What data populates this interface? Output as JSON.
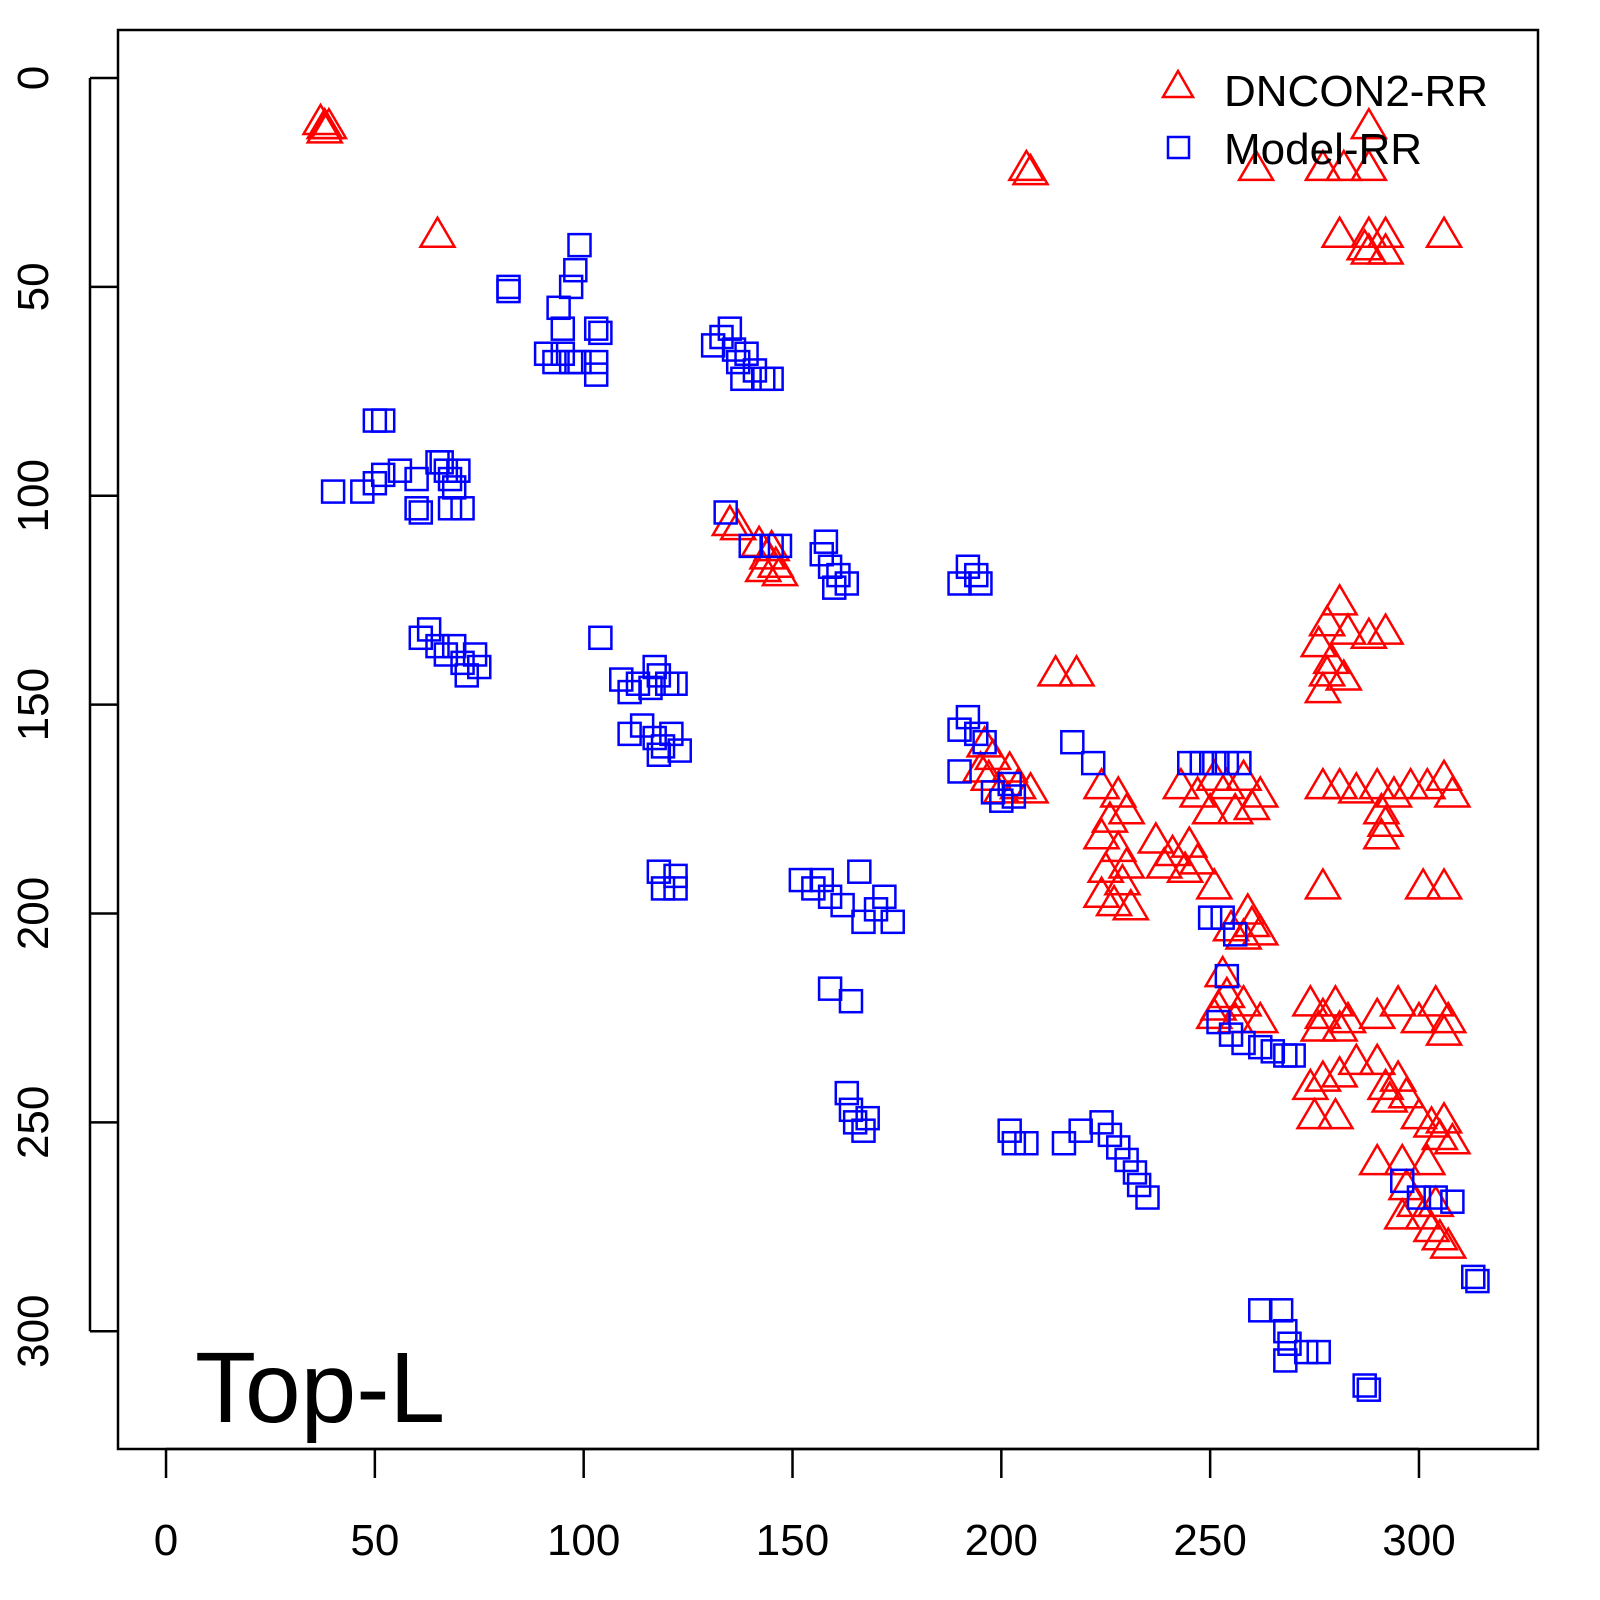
{
  "chart_data": {
    "type": "scatter",
    "title": "",
    "xlabel": "",
    "ylabel": "",
    "xlim": [
      -11.5,
      328.5
    ],
    "ylim": [
      -11.5,
      328.2
    ],
    "y_reversed": true,
    "grid": false,
    "x_ticks": [
      "0",
      "50",
      "100",
      "150",
      "200",
      "250",
      "300"
    ],
    "y_ticks": [
      "0",
      "50",
      "100",
      "150",
      "200",
      "250",
      "300"
    ],
    "annotation": "Top-L",
    "legend": {
      "position": "top-right",
      "entries": [
        "DNCON2-RR",
        "Model-RR"
      ]
    },
    "colors": {
      "DNCON2-RR": "#ff0000",
      "Model-RR": "#0000ff"
    },
    "series": [
      {
        "name": "DNCON2-RR",
        "marker": "triangle",
        "points": [
          [
            37,
            11
          ],
          [
            38,
            12
          ],
          [
            39,
            12
          ],
          [
            38,
            13
          ],
          [
            65,
            38
          ],
          [
            206,
            22
          ],
          [
            207,
            23
          ],
          [
            261,
            22
          ],
          [
            288,
            12
          ],
          [
            277,
            22
          ],
          [
            282,
            22
          ],
          [
            288,
            22
          ],
          [
            281,
            38
          ],
          [
            288,
            38
          ],
          [
            292,
            38
          ],
          [
            306,
            38
          ],
          [
            288,
            42
          ],
          [
            292,
            42
          ],
          [
            287,
            41
          ],
          [
            135,
            107
          ],
          [
            137,
            108
          ],
          [
            142,
            112
          ],
          [
            144,
            115
          ],
          [
            146,
            117
          ],
          [
            143,
            118
          ],
          [
            147,
            119
          ],
          [
            145,
            113
          ],
          [
            213,
            143
          ],
          [
            218,
            143
          ],
          [
            281,
            126
          ],
          [
            278,
            131
          ],
          [
            283,
            133
          ],
          [
            276,
            136
          ],
          [
            288,
            134
          ],
          [
            292,
            133
          ],
          [
            279,
            140
          ],
          [
            282,
            144
          ],
          [
            277,
            147
          ],
          [
            278,
            143
          ],
          [
            196,
            160
          ],
          [
            198,
            163
          ],
          [
            197,
            168
          ],
          [
            200,
            171
          ],
          [
            204,
            170
          ],
          [
            207,
            171
          ],
          [
            195,
            166
          ],
          [
            202,
            166
          ],
          [
            224,
            170
          ],
          [
            228,
            172
          ],
          [
            226,
            178
          ],
          [
            230,
            176
          ],
          [
            224,
            182
          ],
          [
            228,
            185
          ],
          [
            225,
            190
          ],
          [
            229,
            193
          ],
          [
            224,
            196
          ],
          [
            227,
            198
          ],
          [
            231,
            199
          ],
          [
            230,
            189
          ],
          [
            237,
            183
          ],
          [
            241,
            186
          ],
          [
            245,
            184
          ],
          [
            247,
            188
          ],
          [
            239,
            189
          ],
          [
            244,
            190
          ],
          [
            243,
            170
          ],
          [
            247,
            172
          ],
          [
            251,
            168
          ],
          [
            254,
            170
          ],
          [
            258,
            168
          ],
          [
            262,
            172
          ],
          [
            250,
            176
          ],
          [
            256,
            176
          ],
          [
            260,
            175
          ],
          [
            277,
            170
          ],
          [
            281,
            170
          ],
          [
            285,
            171
          ],
          [
            290,
            170
          ],
          [
            294,
            172
          ],
          [
            298,
            170
          ],
          [
            302,
            170
          ],
          [
            306,
            168
          ],
          [
            308,
            172
          ],
          [
            291,
            176
          ],
          [
            291,
            182
          ],
          [
            292,
            179
          ],
          [
            251,
            194
          ],
          [
            277,
            194
          ],
          [
            301,
            194
          ],
          [
            306,
            194
          ],
          [
            259,
            200
          ],
          [
            255,
            204
          ],
          [
            258,
            206
          ],
          [
            262,
            205
          ],
          [
            260,
            203
          ],
          [
            253,
            215
          ],
          [
            254,
            220
          ],
          [
            252,
            223
          ],
          [
            256,
            226
          ],
          [
            258,
            222
          ],
          [
            262,
            226
          ],
          [
            251,
            225
          ],
          [
            274,
            222
          ],
          [
            277,
            225
          ],
          [
            280,
            222
          ],
          [
            283,
            226
          ],
          [
            276,
            228
          ],
          [
            281,
            228
          ],
          [
            290,
            225
          ],
          [
            295,
            222
          ],
          [
            300,
            226
          ],
          [
            304,
            222
          ],
          [
            307,
            226
          ],
          [
            306,
            229
          ],
          [
            274,
            242
          ],
          [
            277,
            240
          ],
          [
            281,
            239
          ],
          [
            275,
            249
          ],
          [
            280,
            249
          ],
          [
            290,
            236
          ],
          [
            292,
            242
          ],
          [
            295,
            240
          ],
          [
            297,
            244
          ],
          [
            293,
            245
          ],
          [
            285,
            236
          ],
          [
            300,
            249
          ],
          [
            303,
            251
          ],
          [
            306,
            250
          ],
          [
            305,
            254
          ],
          [
            308,
            255
          ],
          [
            290,
            260
          ],
          [
            296,
            260
          ],
          [
            302,
            260
          ],
          [
            297,
            266
          ],
          [
            299,
            270
          ],
          [
            301,
            273
          ],
          [
            303,
            276
          ],
          [
            305,
            278
          ],
          [
            307,
            280
          ],
          [
            296,
            273
          ],
          [
            304,
            270
          ]
        ]
      },
      {
        "name": "Model-RR",
        "marker": "square",
        "points": [
          [
            40,
            99
          ],
          [
            47,
            99
          ],
          [
            50,
            97
          ],
          [
            52,
            95
          ],
          [
            56,
            94
          ],
          [
            60,
            96
          ],
          [
            50,
            82
          ],
          [
            52,
            82
          ],
          [
            60,
            103
          ],
          [
            61,
            104
          ],
          [
            65,
            92
          ],
          [
            67,
            94
          ],
          [
            68,
            96
          ],
          [
            69,
            98
          ],
          [
            66,
            92
          ],
          [
            70,
            94
          ],
          [
            71,
            103
          ],
          [
            68,
            103
          ],
          [
            82,
            50
          ],
          [
            82,
            51
          ],
          [
            91,
            66
          ],
          [
            93,
            68
          ],
          [
            95,
            66
          ],
          [
            97,
            68
          ],
          [
            99,
            68
          ],
          [
            99,
            40
          ],
          [
            98,
            46
          ],
          [
            97,
            50
          ],
          [
            94,
            55
          ],
          [
            95,
            60
          ],
          [
            103,
            60
          ],
          [
            104,
            61
          ],
          [
            103,
            68
          ],
          [
            103,
            71
          ],
          [
            131,
            64
          ],
          [
            133,
            62
          ],
          [
            135,
            60
          ],
          [
            136,
            65
          ],
          [
            137,
            68
          ],
          [
            138,
            72
          ],
          [
            141,
            70
          ],
          [
            143,
            72
          ],
          [
            145,
            72
          ],
          [
            139,
            66
          ],
          [
            61,
            134
          ],
          [
            63,
            132
          ],
          [
            65,
            136
          ],
          [
            67,
            138
          ],
          [
            69,
            136
          ],
          [
            71,
            140
          ],
          [
            72,
            143
          ],
          [
            74,
            138
          ],
          [
            75,
            141
          ],
          [
            104,
            134
          ],
          [
            109,
            144
          ],
          [
            111,
            147
          ],
          [
            113,
            145
          ],
          [
            116,
            146
          ],
          [
            118,
            143
          ],
          [
            120,
            145
          ],
          [
            122,
            145
          ],
          [
            117,
            141
          ],
          [
            111,
            157
          ],
          [
            114,
            155
          ],
          [
            117,
            158
          ],
          [
            119,
            160
          ],
          [
            121,
            157
          ],
          [
            123,
            161
          ],
          [
            118,
            162
          ],
          [
            118,
            190
          ],
          [
            119,
            194
          ],
          [
            122,
            191
          ],
          [
            122,
            194
          ],
          [
            134,
            104
          ],
          [
            140,
            112
          ],
          [
            145,
            112
          ],
          [
            147,
            112
          ],
          [
            157,
            114
          ],
          [
            159,
            117
          ],
          [
            161,
            119
          ],
          [
            163,
            121
          ],
          [
            158,
            111
          ],
          [
            160,
            122
          ],
          [
            190,
            121
          ],
          [
            192,
            117
          ],
          [
            194,
            119
          ],
          [
            195,
            121
          ],
          [
            190,
            156
          ],
          [
            192,
            153
          ],
          [
            194,
            157
          ],
          [
            196,
            159
          ],
          [
            190,
            166
          ],
          [
            198,
            171
          ],
          [
            200,
            173
          ],
          [
            203,
            172
          ],
          [
            202,
            169
          ],
          [
            217,
            159
          ],
          [
            222,
            164
          ],
          [
            152,
            192
          ],
          [
            155,
            194
          ],
          [
            157,
            192
          ],
          [
            159,
            196
          ],
          [
            162,
            198
          ],
          [
            166,
            190
          ],
          [
            167,
            202
          ],
          [
            170,
            199
          ],
          [
            172,
            196
          ],
          [
            174,
            202
          ],
          [
            159,
            218
          ],
          [
            164,
            221
          ],
          [
            163,
            243
          ],
          [
            164,
            247
          ],
          [
            165,
            250
          ],
          [
            167,
            252
          ],
          [
            168,
            249
          ],
          [
            202,
            252
          ],
          [
            203,
            255
          ],
          [
            206,
            255
          ],
          [
            215,
            255
          ],
          [
            219,
            252
          ],
          [
            224,
            250
          ],
          [
            226,
            253
          ],
          [
            228,
            256
          ],
          [
            230,
            259
          ],
          [
            232,
            262
          ],
          [
            233,
            265
          ],
          [
            235,
            268
          ],
          [
            245,
            164
          ],
          [
            248,
            164
          ],
          [
            251,
            164
          ],
          [
            254,
            164
          ],
          [
            257,
            164
          ],
          [
            250,
            201
          ],
          [
            253,
            201
          ],
          [
            256,
            205
          ],
          [
            254,
            215
          ],
          [
            252,
            226
          ],
          [
            255,
            229
          ],
          [
            258,
            231
          ],
          [
            262,
            232
          ],
          [
            265,
            233
          ],
          [
            268,
            234
          ],
          [
            270,
            234
          ],
          [
            296,
            264
          ],
          [
            300,
            268
          ],
          [
            304,
            268
          ],
          [
            308,
            269
          ],
          [
            313,
            287
          ],
          [
            314,
            288
          ],
          [
            262,
            295
          ],
          [
            267,
            295
          ],
          [
            268,
            300
          ],
          [
            269,
            303
          ],
          [
            268,
            307
          ],
          [
            273,
            305
          ],
          [
            276,
            305
          ],
          [
            287,
            313
          ],
          [
            288,
            314
          ]
        ]
      }
    ]
  }
}
